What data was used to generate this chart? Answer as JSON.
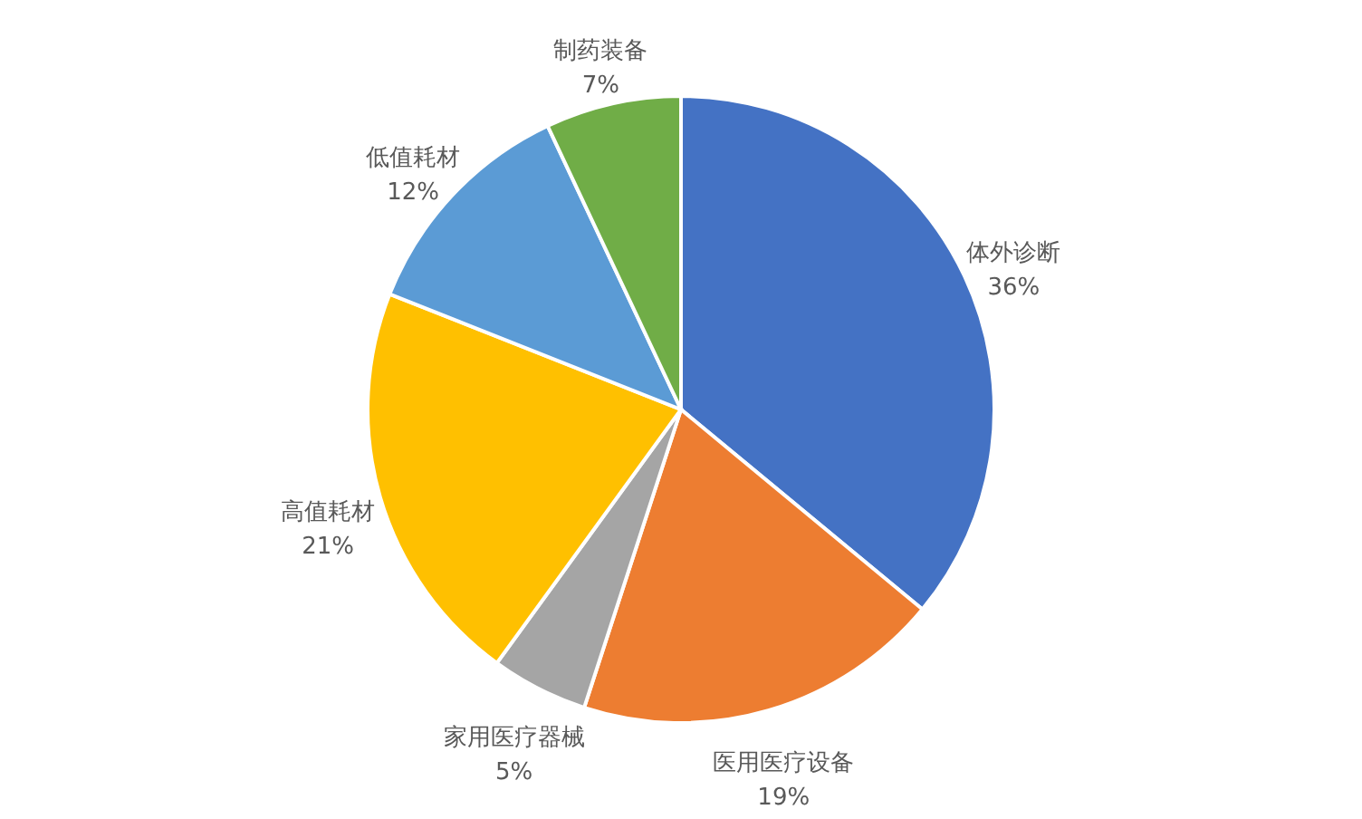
{
  "chart_data": {
    "type": "pie",
    "categories": [
      "体外诊断",
      "医用医疗设备",
      "家用医疗器械",
      "高值耗材",
      "低值耗材",
      "制药装备"
    ],
    "values": [
      36,
      19,
      5,
      21,
      12,
      7
    ],
    "colors": [
      "#4472c4",
      "#ed7d31",
      "#a5a5a5",
      "#ffc000",
      "#5b9bd5",
      "#70ad47"
    ],
    "value_labels": [
      "36%",
      "19%",
      "5%",
      "21%",
      "12%",
      "7%"
    ]
  }
}
